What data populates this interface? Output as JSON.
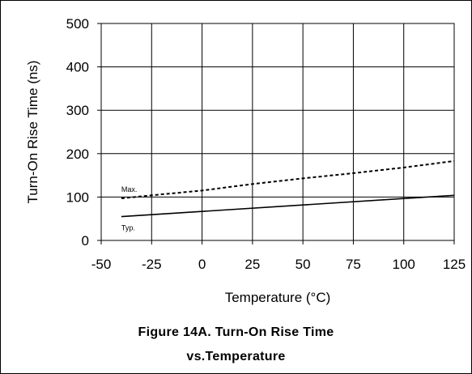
{
  "chart_data": {
    "type": "line",
    "xlabel": "Temperature (°C)",
    "ylabel": "Turn-On Rise Time (ns)",
    "xlim": [
      -50,
      125
    ],
    "ylim": [
      0,
      500
    ],
    "x_ticks": [
      -50,
      -25,
      0,
      25,
      50,
      75,
      100,
      125
    ],
    "y_ticks": [
      0,
      100,
      200,
      300,
      400,
      500
    ],
    "grid": true,
    "series": [
      {
        "name": "Max.",
        "style": "dashed",
        "color": "#000000",
        "x": [
          -40,
          -25,
          0,
          25,
          50,
          75,
          100,
          125
        ],
        "y": [
          97,
          104,
          115,
          130,
          143,
          155,
          168,
          183
        ]
      },
      {
        "name": "Typ.",
        "style": "solid",
        "color": "#000000",
        "x": [
          -40,
          125
        ],
        "y": [
          55,
          104
        ]
      }
    ]
  },
  "caption": {
    "line1": "Figure 14A. Turn-On Rise Time",
    "line2": "vs.Temperature"
  }
}
